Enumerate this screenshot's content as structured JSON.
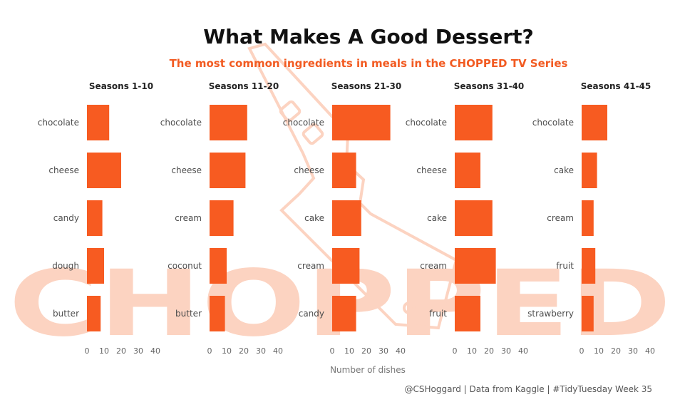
{
  "chart_data": {
    "type": "bar",
    "orientation": "horizontal",
    "title": "What Makes A Good Dessert?",
    "subtitle": "The most common ingredients in meals in the CHOPPED TV Series",
    "xlabel": "Number of dishes",
    "xlim": [
      0,
      40
    ],
    "xticks": [
      "0",
      "10",
      "20",
      "30",
      "40"
    ],
    "bar_color": "#f75b21",
    "caption": "@CSHoggard | Data from Kaggle | #TidyTuesday Week 35",
    "watermark": "CHOPPED",
    "facets": [
      {
        "title": "Seasons 1-10",
        "categories": [
          "chocolate",
          "cheese",
          "candy",
          "dough",
          "butter"
        ],
        "values": [
          13,
          20,
          9,
          10,
          8
        ]
      },
      {
        "title": "Seasons 11-20",
        "categories": [
          "chocolate",
          "cheese",
          "cream",
          "coconut",
          "butter"
        ],
        "values": [
          22,
          21,
          14,
          10,
          9
        ]
      },
      {
        "title": "Seasons 21-30",
        "categories": [
          "chocolate",
          "cheese",
          "cake",
          "cream",
          "candy"
        ],
        "values": [
          34,
          14,
          17,
          16,
          14
        ]
      },
      {
        "title": "Seasons 31-40",
        "categories": [
          "chocolate",
          "cheese",
          "cake",
          "cream",
          "fruit"
        ],
        "values": [
          22,
          15,
          22,
          24,
          15
        ]
      },
      {
        "title": "Seasons 41-45",
        "categories": [
          "chocolate",
          "cake",
          "cream",
          "fruit",
          "strawberry"
        ],
        "values": [
          15,
          9,
          7,
          8,
          7
        ]
      }
    ]
  }
}
